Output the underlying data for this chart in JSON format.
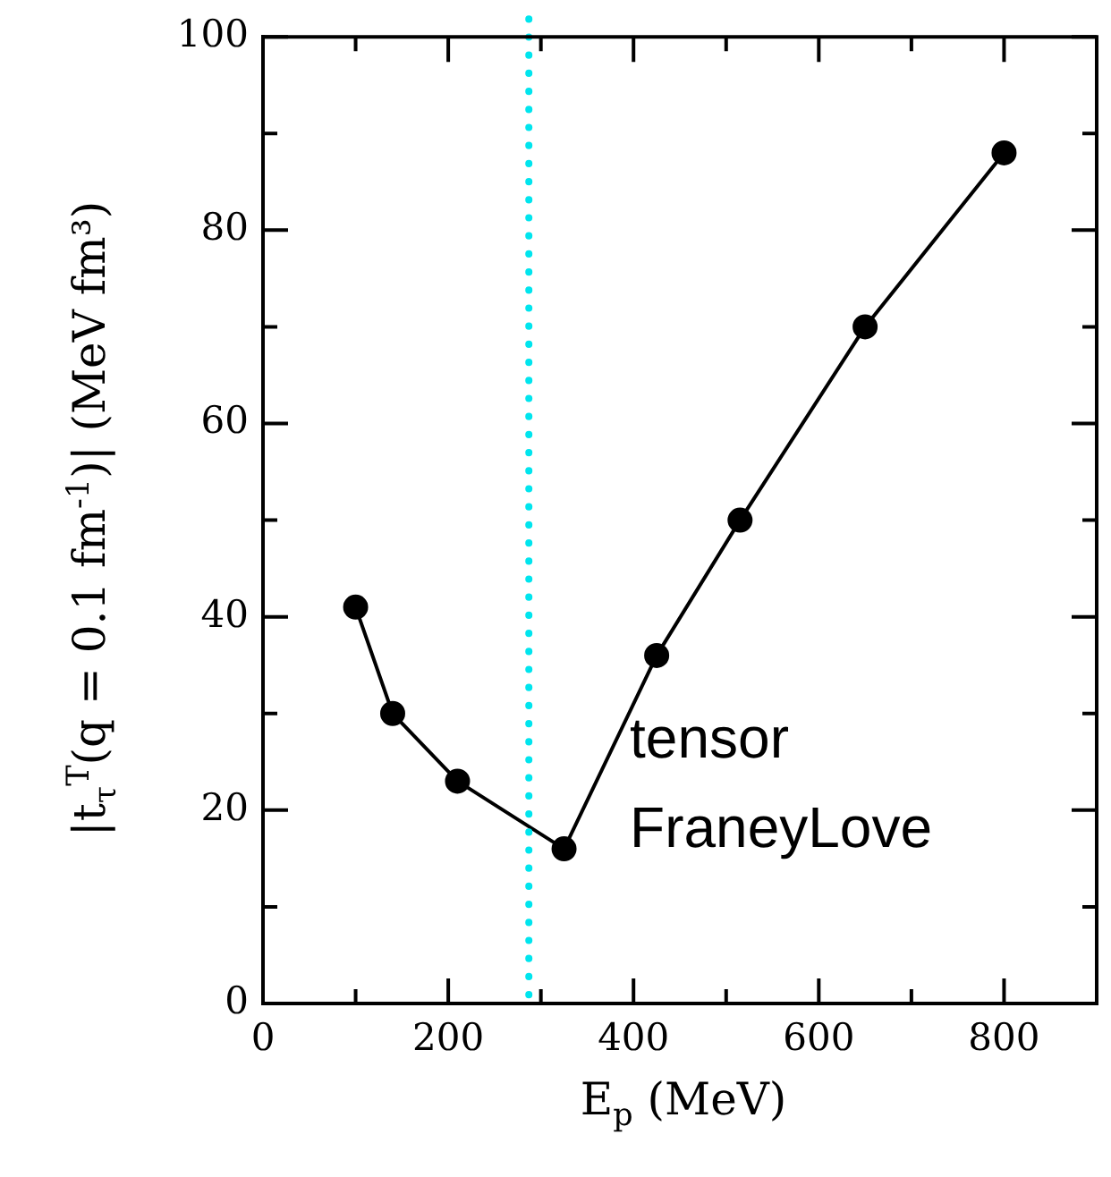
{
  "chart_data": {
    "type": "line",
    "xlabel": "E$_{p}$ (MeV)",
    "ylabel": "|t$_{τ}$$^{T}$(q = 0.1 fm$^{-1}$)| (MeV fm³)",
    "x": [
      100,
      140,
      210,
      325,
      425,
      515,
      650,
      800
    ],
    "series": [
      {
        "name": "tensor FraneyLove",
        "color": "#000000",
        "values": [
          41,
          30,
          23,
          16,
          36,
          50,
          70,
          88
        ]
      }
    ],
    "xlim": [
      0,
      900
    ],
    "xticks": [
      0,
      {
        "value": 100,
        "label": null
      },
      200,
      {
        "value": 300,
        "label": null
      },
      400,
      {
        "value": 500,
        "label": null
      },
      600,
      {
        "value": 700,
        "label": null
      },
      800
    ],
    "ylim": [
      0,
      100
    ],
    "yticks": [
      0,
      {
        "value": 10,
        "label": null
      },
      20,
      {
        "value": 30,
        "label": null
      },
      40,
      {
        "value": 50,
        "label": null
      },
      60,
      {
        "value": 70,
        "label": null
      },
      80,
      {
        "value": 90,
        "label": null
      },
      100
    ],
    "ref_lines": [
      {
        "axis": "x",
        "value": 287,
        "color": "#00e5ee",
        "line_style": "dotted"
      }
    ],
    "marker": "circle",
    "line_style": "solid",
    "legend": false,
    "grid": false
  }
}
